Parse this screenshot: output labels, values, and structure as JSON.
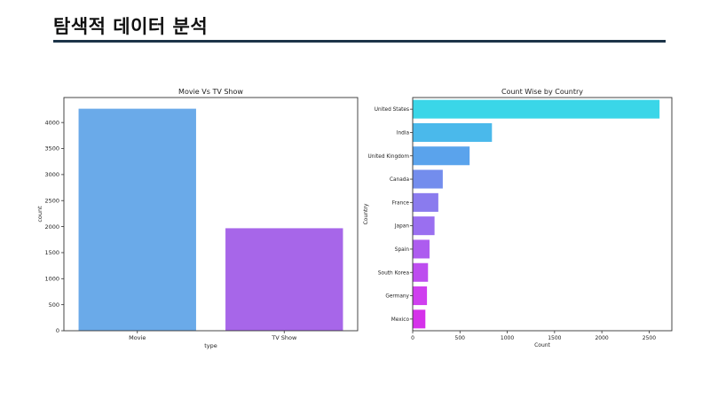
{
  "page": {
    "title": "탐색적 데이터 분석"
  },
  "chart_data": [
    {
      "type": "bar",
      "orientation": "vertical",
      "title": "Movie Vs TV Show",
      "xlabel": "type",
      "ylabel": "count",
      "categories": [
        "Movie",
        "TV Show"
      ],
      "values": [
        4265,
        1969
      ],
      "colors": [
        "#6aaae9",
        "#a766e9"
      ],
      "ylim": [
        0,
        4480
      ],
      "yticks": [
        0,
        500,
        1000,
        1500,
        2000,
        2500,
        3000,
        3500,
        4000
      ],
      "grid": false
    },
    {
      "type": "bar",
      "orientation": "horizontal",
      "title": "Count Wise by Country",
      "xlabel": "Count",
      "ylabel": "Country",
      "categories": [
        "United States",
        "India",
        "United Kingdom",
        "Canada",
        "France",
        "Japan",
        "Spain",
        "South Korea",
        "Germany",
        "Mexico"
      ],
      "values": [
        2610,
        838,
        602,
        318,
        271,
        231,
        178,
        162,
        151,
        134
      ],
      "colors": [
        "#3ad6e8",
        "#4ab9eb",
        "#5aa3ec",
        "#738ded",
        "#8a7bee",
        "#9a6ff0",
        "#ad5cef",
        "#bd4def",
        "#cf3fef",
        "#d531ea"
      ],
      "xlim": [
        0,
        2740
      ],
      "xticks": [
        0,
        500,
        1000,
        1500,
        2000,
        2500
      ],
      "grid": false
    }
  ]
}
